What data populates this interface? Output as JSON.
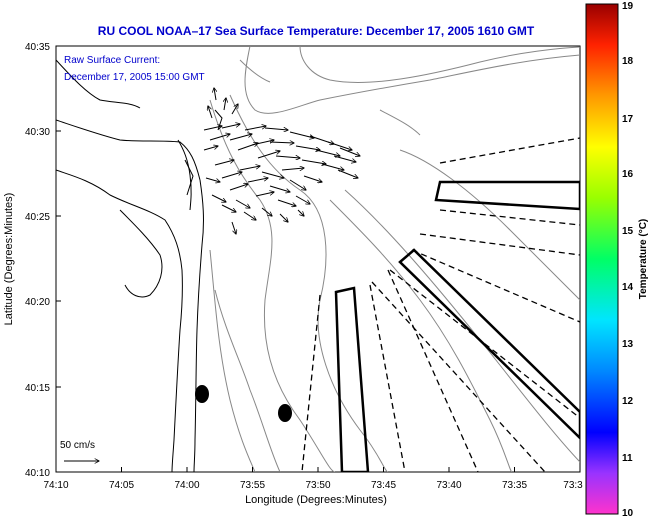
{
  "title": "RU COOL   NOAA–17  Sea Surface Temperature:  December 17, 2005 1610 GMT",
  "legend": {
    "line1": "Raw Surface Current:",
    "line2": "December 17, 2005 15:00 GMT"
  },
  "scale_label": "50 cm/s",
  "x_axis": {
    "label": "Longitude (Degrees:Minutes)",
    "ticks": [
      "74:10",
      "74:05",
      "74:00",
      "73:55",
      "73:50",
      "73:45",
      "73:40",
      "73:35",
      "73:3"
    ]
  },
  "y_axis": {
    "label": "Latitude (Degrees:Minutes)",
    "ticks": [
      "40:35",
      "40:30",
      "40:25",
      "40:20",
      "40:15",
      "40:10"
    ]
  },
  "colorbar": {
    "label": "Temperature (°C)",
    "ticks": [
      "19",
      "18",
      "17",
      "16",
      "15",
      "14",
      "13",
      "12",
      "11",
      "10"
    ],
    "range": [
      10,
      19
    ]
  },
  "colors": {
    "title": "#0000cc",
    "land_outline": "#000000",
    "bathymetry": "#888888"
  }
}
